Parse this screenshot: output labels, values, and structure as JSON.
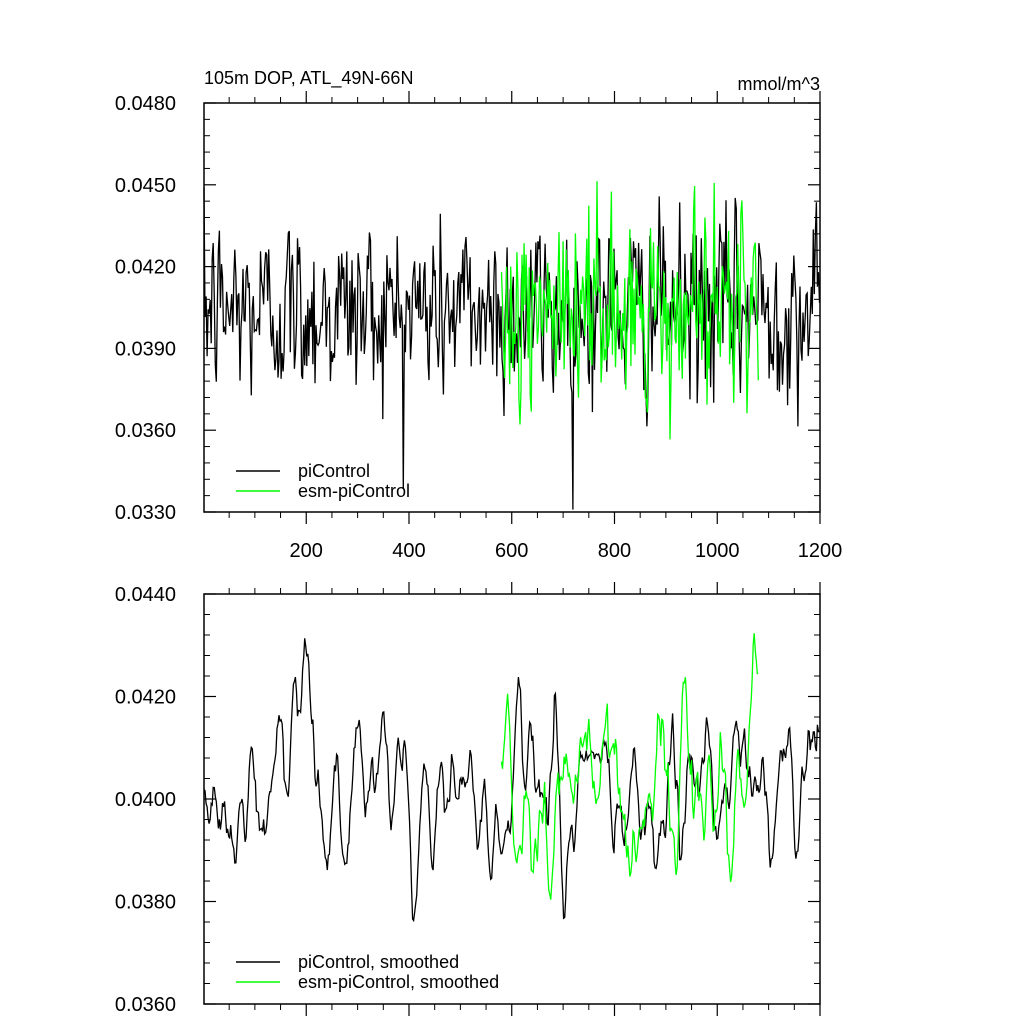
{
  "chart_data": [
    {
      "type": "line",
      "title_left": "105m DOP, ATL_49N-66N",
      "title_right": "mmol/m^3",
      "xlabel": "",
      "ylabel": "",
      "xlim": [
        1,
        1200
      ],
      "ylim": [
        0.033,
        0.048
      ],
      "yticks": [
        "0.0330",
        "0.0360",
        "0.0390",
        "0.0420",
        "0.0450",
        "0.0480"
      ],
      "xticks": [
        "200",
        "400",
        "600",
        "800",
        "1000",
        "1200"
      ],
      "legend_position": "bottom-left",
      "series": [
        {
          "name": "piControl",
          "color": "#000000",
          "x_start": 1,
          "x_end": 1200,
          "mean": 0.0404,
          "std": 0.0016
        },
        {
          "name": "esm-piControl",
          "color": "#00ff00",
          "x_start": 580,
          "x_end": 1080,
          "mean": 0.0404,
          "std": 0.0017
        }
      ]
    },
    {
      "type": "line",
      "xlim": [
        1,
        1200
      ],
      "ylim": [
        0.036,
        0.044
      ],
      "yticks": [
        "0.0360",
        "0.0380",
        "0.0400",
        "0.0420",
        "0.0440"
      ],
      "legend_position": "bottom-left",
      "series": [
        {
          "name": "piControl, smoothed",
          "color": "#000000",
          "x_start": 1,
          "x_end": 1200,
          "mean": 0.0402,
          "std": 0.0009
        },
        {
          "name": "esm-piControl, smoothed",
          "color": "#00ff00",
          "x_start": 580,
          "x_end": 1080,
          "mean": 0.0402,
          "std": 0.001
        }
      ]
    }
  ]
}
